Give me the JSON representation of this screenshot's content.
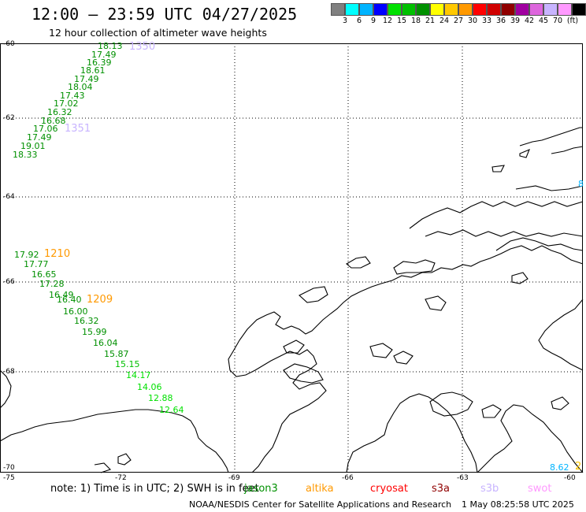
{
  "header": {
    "title": "12:00 – 23:59 UTC 04/27/2025",
    "subtitle": "12 hour collection of altimeter wave heights"
  },
  "scale": {
    "colors": [
      "#808080",
      "#00ffff",
      "#00b4ff",
      "#0000ff",
      "#00e000",
      "#00c000",
      "#009000",
      "#ffff00",
      "#ffc800",
      "#ff9900",
      "#ff0000",
      "#d00000",
      "#900000",
      "#a000a0",
      "#dd66dd",
      "#c8b4ff",
      "#ff99ff",
      "#000000"
    ],
    "labels": [
      "3",
      "6",
      "9",
      "12",
      "15",
      "18",
      "21",
      "24",
      "27",
      "30",
      "33",
      "36",
      "39",
      "42",
      "45",
      "70"
    ],
    "unit": "(ft)"
  },
  "axes": {
    "lat_labels": [
      "-60",
      "-62",
      "-64",
      "-66",
      "-68",
      "-70"
    ],
    "lon_labels": [
      "-75",
      "-72",
      "-69",
      "-66",
      "-63",
      "-60"
    ]
  },
  "passes": [
    {
      "id": "1350",
      "color": "#c8b4ff"
    },
    {
      "id": "1351",
      "color": "#c8b4ff"
    },
    {
      "id": "1210",
      "color": "#ff9900"
    },
    {
      "id": "1209",
      "color": "#ff9900"
    }
  ],
  "track_a": {
    "color": "#009000",
    "values": [
      "18.13",
      "17.49",
      "16.39",
      "18.61",
      "17.49",
      "18.04",
      "17.43",
      "17.02",
      "16.32",
      "16.68",
      "17.06",
      "17.49",
      "19.01",
      "18.33"
    ]
  },
  "track_b": {
    "values": [
      {
        "v": "17.92",
        "c": "#009000"
      },
      {
        "v": "17.77",
        "c": "#009000"
      },
      {
        "v": "16.65",
        "c": "#009000"
      },
      {
        "v": "17.28",
        "c": "#009000"
      },
      {
        "v": "16.49",
        "c": "#009000"
      },
      {
        "v": "16.40",
        "c": "#009000"
      },
      {
        "v": "16.00",
        "c": "#009000"
      },
      {
        "v": "16.32",
        "c": "#009000"
      },
      {
        "v": "15.99",
        "c": "#009000"
      },
      {
        "v": "16.04",
        "c": "#009000"
      },
      {
        "v": "15.87",
        "c": "#009000"
      },
      {
        "v": "15.15",
        "c": "#00c000"
      },
      {
        "v": "14.17",
        "c": "#00e000"
      },
      {
        "v": "14.06",
        "c": "#00e000"
      },
      {
        "v": "12.88",
        "c": "#00e000"
      },
      {
        "v": "12.64",
        "c": "#00e000"
      }
    ]
  },
  "edge_values": [
    {
      "v": "8.62",
      "c": "#00b4ff"
    },
    {
      "v": "2",
      "c": "#ffc800"
    },
    {
      "v": "8",
      "c": "#00b4ff"
    }
  ],
  "footer": {
    "note": "note: 1) Time is in UTC; 2) SWH is in feet",
    "satellites": [
      {
        "name": "jason3",
        "color": "#009000"
      },
      {
        "name": "altika",
        "color": "#ff9900"
      },
      {
        "name": "cryosat",
        "color": "#ff0000"
      },
      {
        "name": "s3a",
        "color": "#900000"
      },
      {
        "name": "s3b",
        "color": "#c8b4ff"
      },
      {
        "name": "swot",
        "color": "#ff99ff"
      }
    ],
    "credit": "NOAA/NESDIS Center for Satellite Applications and Research",
    "timestamp": "1 May 08:25:58 UTC 2025"
  }
}
